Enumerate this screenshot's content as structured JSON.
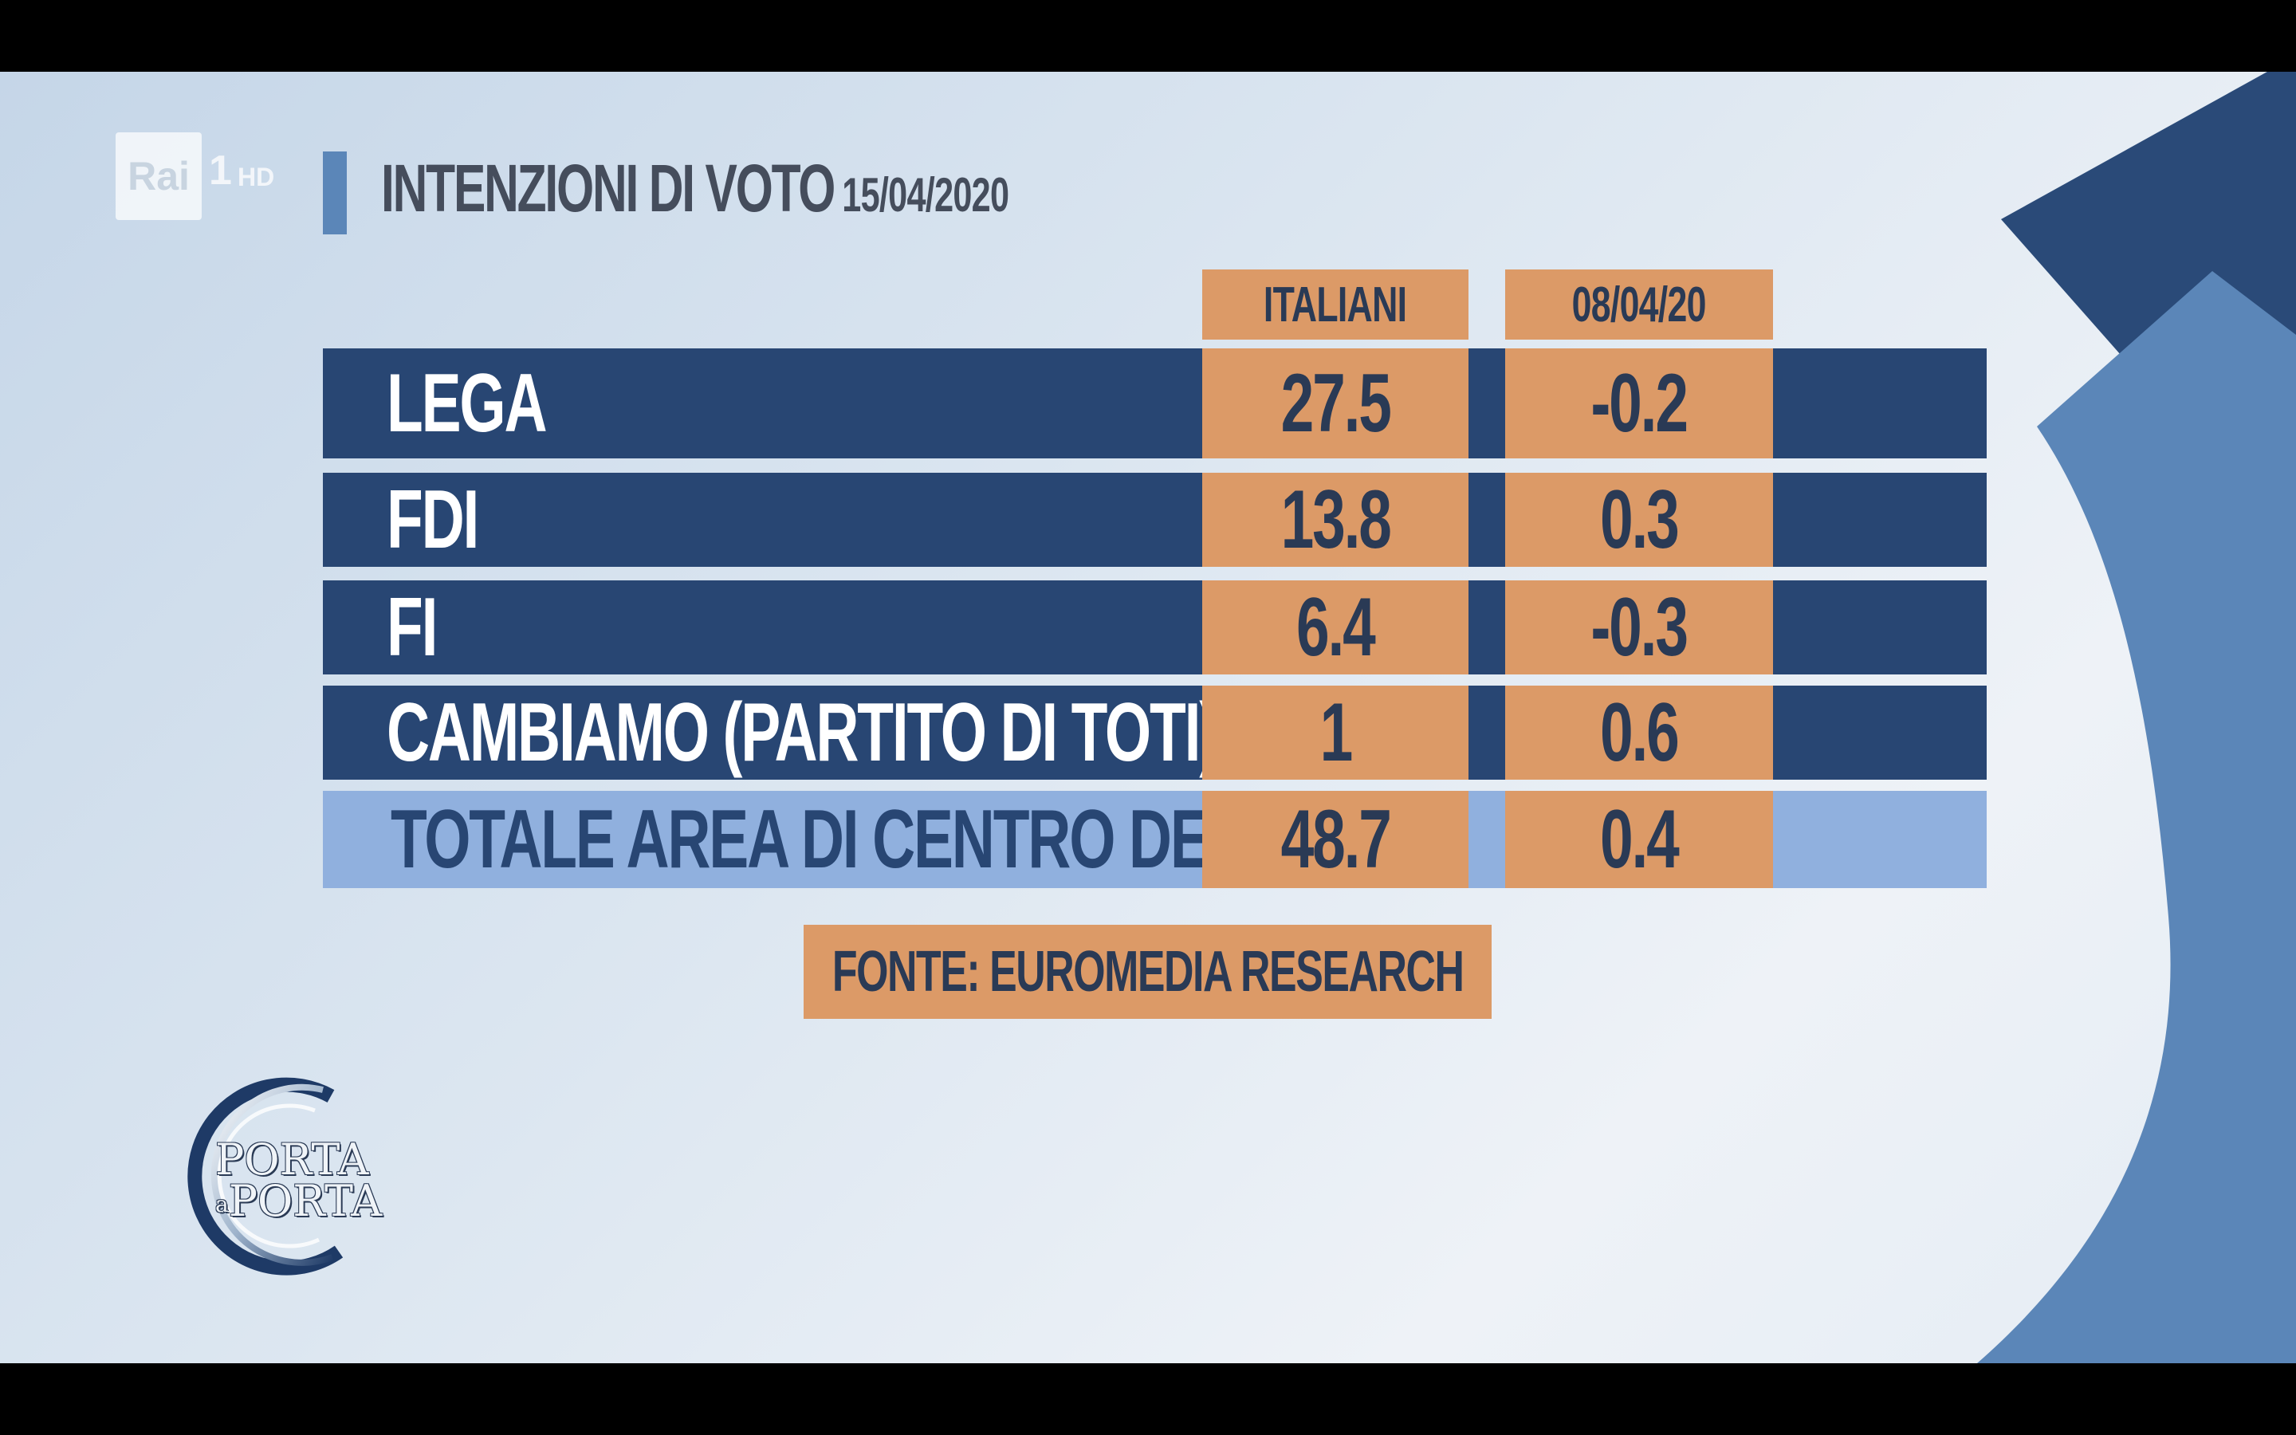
{
  "channel": {
    "rai": "Rai",
    "number": "1",
    "hd": "HD"
  },
  "title": {
    "main": "INTENZIONI DI VOTO",
    "date": "15/04/2020"
  },
  "columns": [
    "ITALIANI",
    "08/04/20"
  ],
  "rows": [
    {
      "party": "LEGA",
      "italiani": "27.5",
      "change": "-0.2"
    },
    {
      "party": "FDI",
      "italiani": "13.8",
      "change": "0.3"
    },
    {
      "party": "FI",
      "italiani": "6.4",
      "change": "-0.3"
    },
    {
      "party": "CAMBIAMO (PARTITO DI TOTI)",
      "italiani": "1",
      "change": "0.6"
    },
    {
      "party": "TOTALE AREA DI CENTRO DESTRA",
      "italiani": "48.7",
      "change": "0.4"
    }
  ],
  "source": "FONTE: EUROMEDIA RESEARCH",
  "show_logo": {
    "line1": "PORTA",
    "connector": "a",
    "line2": "PORTA"
  },
  "colors": {
    "navy": "#284673",
    "orange": "#dc9a67",
    "light_blue": "#90b0de",
    "accent_blue": "#5b86b8"
  }
}
